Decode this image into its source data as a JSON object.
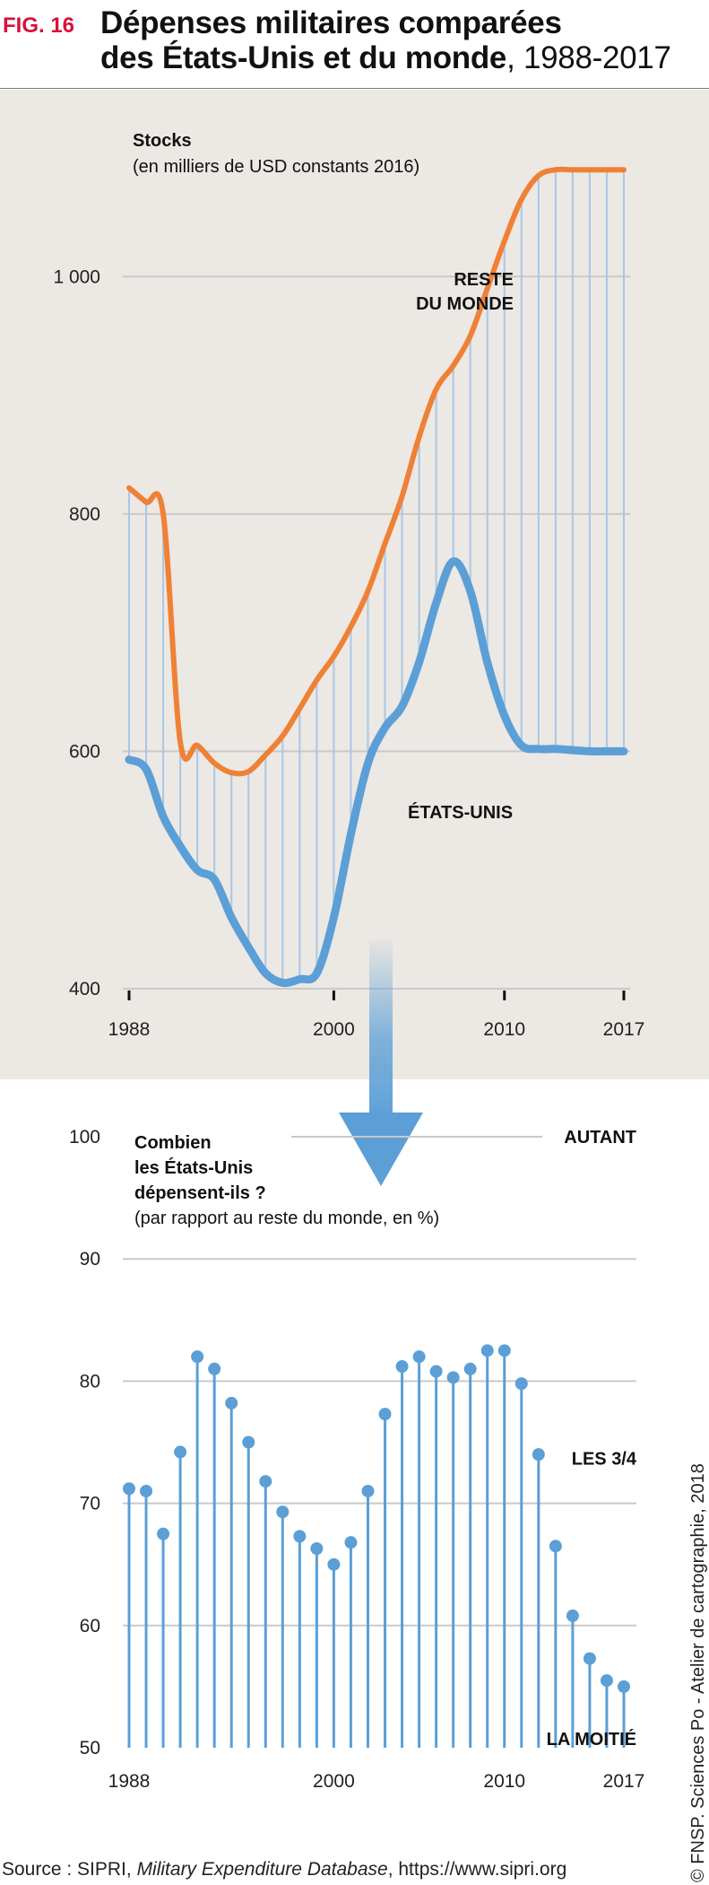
{
  "header": {
    "fig_label": "FIG. 16",
    "title_bold_1": "Dépenses militaires comparées",
    "title_bold_2": "des États-Unis et du monde",
    "title_suffix": ", 1988-2017"
  },
  "colors": {
    "usa": "#5b9fd6",
    "rest_of_world": "#ef8136",
    "panel_bg": "#ece8e3",
    "grid": "#c9c9c9",
    "fig_label": "#d6123c"
  },
  "chart_data": [
    {
      "type": "line",
      "ylabel_line1": "Stocks",
      "ylabel_line2": "(en milliers de USD constants 2016)",
      "ylim": [
        400,
        1100
      ],
      "yticks": [
        400,
        600,
        800,
        1000
      ],
      "ytick_labels": [
        "400",
        "600",
        "800",
        "1 000"
      ],
      "xticks": [
        1988,
        2000,
        2010,
        2017
      ],
      "xtick_labels": [
        "1988",
        "2000",
        "2010",
        "2017"
      ],
      "x": [
        1988,
        1989,
        1990,
        1991,
        1992,
        1993,
        1994,
        1995,
        1996,
        1997,
        1998,
        1999,
        2000,
        2001,
        2002,
        2003,
        2004,
        2005,
        2006,
        2007,
        2008,
        2009,
        2010,
        2011,
        2012,
        2013,
        2014,
        2015,
        2016,
        2017
      ],
      "series": [
        {
          "name": "RESTE DU MONDE",
          "label_line1": "RESTE",
          "label_line2": "DU MONDE",
          "values": [
            822,
            810,
            800,
            608,
            605,
            590,
            582,
            583,
            597,
            613,
            636,
            660,
            680,
            705,
            735,
            775,
            815,
            865,
            905,
            925,
            950,
            990,
            1030,
            1065,
            1085,
            1090,
            1090,
            1090,
            1090,
            1090
          ]
        },
        {
          "name": "ÉTATS-UNIS",
          "values": [
            593,
            585,
            545,
            520,
            500,
            492,
            460,
            435,
            413,
            405,
            408,
            413,
            460,
            530,
            590,
            620,
            638,
            675,
            725,
            760,
            735,
            675,
            630,
            605,
            602,
            602,
            601,
            600,
            600,
            600
          ]
        }
      ]
    },
    {
      "type": "bar",
      "title_line1": "Combien",
      "title_line2": "les États-Unis",
      "title_line3": "dépensent-ils ?",
      "subtitle": "(par rapport au reste du monde, en %)",
      "ylim": [
        50,
        100
      ],
      "yticks": [
        50,
        60,
        70,
        80,
        90,
        100
      ],
      "ytick_labels": [
        "50",
        "60",
        "70",
        "80",
        "90",
        "100"
      ],
      "xticks": [
        1988,
        2000,
        2010,
        2017
      ],
      "xtick_labels": [
        "1988",
        "2000",
        "2010",
        "2017"
      ],
      "categories": [
        1988,
        1989,
        1990,
        1991,
        1992,
        1993,
        1994,
        1995,
        1996,
        1997,
        1998,
        1999,
        2000,
        2001,
        2002,
        2003,
        2004,
        2005,
        2006,
        2007,
        2008,
        2009,
        2010,
        2011,
        2012,
        2013,
        2014,
        2015,
        2016,
        2017
      ],
      "values": [
        71.2,
        71.0,
        67.5,
        74.2,
        82.0,
        81.0,
        78.2,
        75.0,
        71.8,
        69.3,
        67.3,
        66.3,
        65.0,
        66.8,
        71.0,
        77.3,
        81.2,
        82.0,
        80.8,
        80.3,
        81.0,
        82.5,
        82.5,
        79.8,
        74.0,
        66.5,
        60.8,
        57.3,
        55.5,
        55.0
      ],
      "annotations": [
        {
          "text": "AUTANT",
          "value": 100
        },
        {
          "text": "LES 3/4",
          "value": 75
        },
        {
          "text": "LA MOITIÉ",
          "value": 50
        }
      ]
    }
  ],
  "source": {
    "prefix": "Source : SIPRI, ",
    "italic": "Military Expenditure Database",
    "suffix": ", https://www.sipri.org"
  },
  "credit": "© FNSP. Sciences Po - Atelier de cartographie, 2018"
}
